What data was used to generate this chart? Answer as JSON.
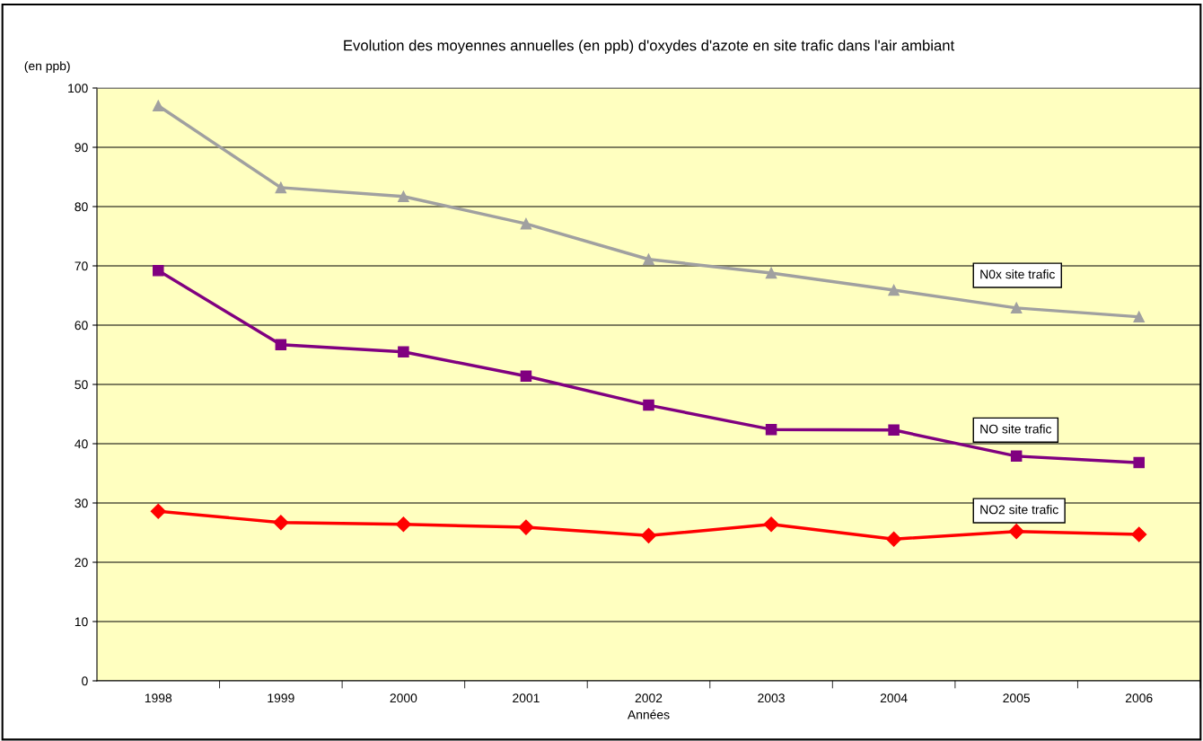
{
  "chart_data": {
    "type": "line",
    "title": "Evolution des moyennes annuelles (en ppb) d'oxydes d'azote en site trafic dans l'air ambiant",
    "xlabel": "Années",
    "ylabel": "(en ppb)",
    "categories": [
      "1998",
      "1999",
      "2000",
      "2001",
      "2002",
      "2003",
      "2004",
      "2005",
      "2006"
    ],
    "series": [
      {
        "name": "N0x site trafic",
        "color": "#a0a0a0",
        "marker": "triangle",
        "values": [
          97.0,
          83.2,
          81.7,
          77.1,
          71.1,
          68.8,
          65.9,
          62.9,
          61.4
        ]
      },
      {
        "name": "NO site trafic",
        "color": "#800080",
        "marker": "square",
        "values": [
          69.2,
          56.7,
          55.5,
          51.4,
          46.5,
          42.4,
          42.3,
          37.9,
          36.8
        ]
      },
      {
        "name": "NO2 site trafic",
        "color": "#ff0000",
        "marker": "diamond",
        "values": [
          28.6,
          26.7,
          26.4,
          25.9,
          24.5,
          26.4,
          23.9,
          25.2,
          24.7
        ]
      }
    ],
    "ylim": [
      0,
      100
    ],
    "yticks": [
      0,
      10,
      20,
      30,
      40,
      50,
      60,
      70,
      80,
      90,
      100
    ],
    "grid": "y",
    "legend": false
  }
}
